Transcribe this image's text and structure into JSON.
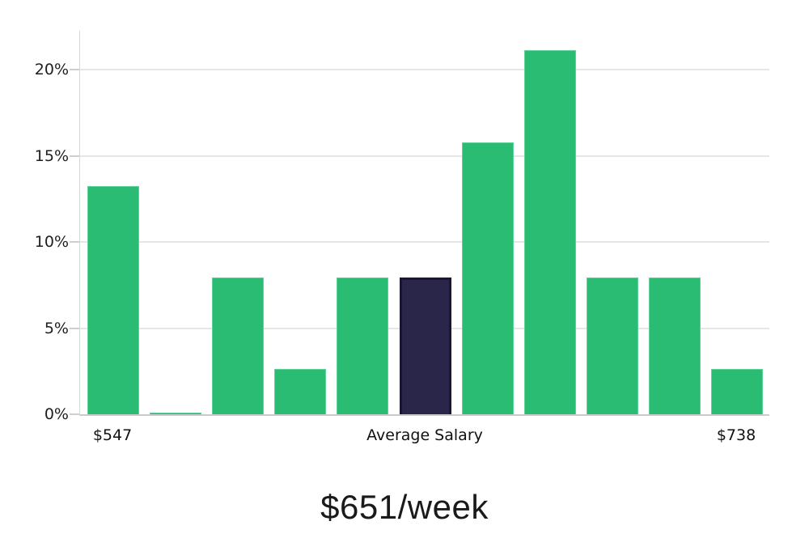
{
  "chart_data": {
    "type": "bar",
    "title": "$651/week",
    "ylabel": "",
    "xlabel": "",
    "ylim": [
      0,
      22.27
    ],
    "grid": true,
    "legend": false,
    "y_ticks": [
      {
        "label": "0%",
        "value": 0
      },
      {
        "label": "5%",
        "value": 5
      },
      {
        "label": "10%",
        "value": 10
      },
      {
        "label": "15%",
        "value": 15
      },
      {
        "label": "20%",
        "value": 20
      }
    ],
    "values": [
      13.25,
      0.1,
      7.95,
      2.65,
      7.95,
      7.95,
      15.8,
      21.15,
      7.95,
      7.95,
      2.65
    ],
    "highlight_index": 5,
    "highlight_meaning": "Average Salary",
    "x_axis_labels": [
      {
        "text": "$547",
        "bar_index": 0
      },
      {
        "text": "Average Salary",
        "bar_index": 5
      },
      {
        "text": "$738",
        "bar_index": 10
      }
    ],
    "colors": {
      "bar": "#2abc72",
      "bar_edge": "#5ed29a",
      "highlight_bar": "#2a2649",
      "highlight_edge": "#191533",
      "gridline": "#e6e6e6",
      "axis_line": "#cbcbcb",
      "text": "#1f1f1f"
    }
  }
}
